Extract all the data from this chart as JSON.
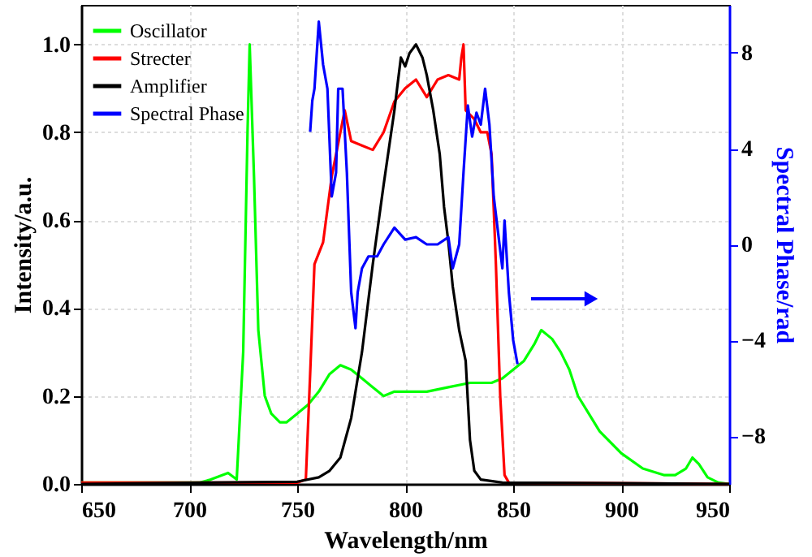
{
  "chart_data": {
    "type": "line",
    "xlabel": "Wavelength/nm",
    "ylabel": "Intensity/a.u.",
    "y2label": "Spectral Phase/rad",
    "xlim": [
      650,
      950
    ],
    "xticks": [
      650,
      700,
      750,
      800,
      850,
      900,
      950
    ],
    "ylim": [
      0,
      1.09
    ],
    "yticks": [
      {
        "value": 0,
        "label": "0.0"
      },
      0.2,
      0.4,
      0.6,
      0.8,
      {
        "value": 1.0,
        "label": "1.0"
      }
    ],
    "y2lim": [
      -10,
      10
    ],
    "y2ticks": [
      -8,
      -4,
      0,
      4,
      8
    ],
    "grid": true,
    "legend": "top left",
    "line_style": "solid",
    "marker": "none",
    "series": [
      {
        "name": "Oscillator",
        "color": "#00ff00",
        "x": [
          650,
          680,
          705,
          710,
          718,
          722,
          725,
          727,
          728,
          730,
          732,
          735,
          738,
          742,
          745,
          750,
          755,
          760,
          765,
          770,
          775,
          780,
          785,
          790,
          795,
          800,
          810,
          820,
          830,
          840,
          845,
          850,
          855,
          860,
          863,
          868,
          872,
          876,
          880,
          885,
          890,
          900,
          910,
          920,
          925,
          930,
          933,
          936,
          940,
          945,
          950
        ],
        "values": [
          0.003,
          0.003,
          0.003,
          0.01,
          0.025,
          0.01,
          0.3,
          0.8,
          1.0,
          0.7,
          0.35,
          0.2,
          0.16,
          0.14,
          0.14,
          0.16,
          0.18,
          0.21,
          0.25,
          0.27,
          0.26,
          0.24,
          0.22,
          0.2,
          0.21,
          0.21,
          0.21,
          0.22,
          0.23,
          0.23,
          0.24,
          0.26,
          0.28,
          0.32,
          0.35,
          0.33,
          0.3,
          0.26,
          0.2,
          0.16,
          0.12,
          0.07,
          0.035,
          0.02,
          0.02,
          0.035,
          0.06,
          0.045,
          0.015,
          0.003,
          0.0
        ]
      },
      {
        "name": "Strecter",
        "color": "#ff0000",
        "x": [
          650,
          750,
          754,
          756,
          758,
          762,
          766,
          770,
          772,
          775,
          780,
          785,
          790,
          795,
          800,
          805,
          810,
          815,
          820,
          825,
          826,
          827,
          828,
          832,
          835,
          838,
          840,
          842,
          844,
          846,
          848,
          950
        ],
        "values": [
          0.003,
          0.003,
          0.01,
          0.25,
          0.5,
          0.55,
          0.7,
          0.8,
          0.85,
          0.78,
          0.77,
          0.76,
          0.8,
          0.87,
          0.9,
          0.92,
          0.88,
          0.92,
          0.93,
          0.92,
          0.97,
          1.0,
          0.85,
          0.83,
          0.8,
          0.8,
          0.75,
          0.5,
          0.2,
          0.02,
          0.003,
          0.0
        ]
      },
      {
        "name": "Amplifier",
        "color": "#000000",
        "x": [
          650,
          750,
          760,
          765,
          770,
          775,
          780,
          785,
          790,
          795,
          798,
          800,
          802,
          805,
          808,
          810,
          813,
          816,
          818,
          820,
          822,
          825,
          828,
          830,
          832,
          835,
          845,
          950
        ],
        "values": [
          0.0,
          0.005,
          0.015,
          0.03,
          0.06,
          0.15,
          0.3,
          0.5,
          0.68,
          0.85,
          0.97,
          0.95,
          0.98,
          1.0,
          0.97,
          0.93,
          0.85,
          0.75,
          0.63,
          0.55,
          0.45,
          0.35,
          0.28,
          0.1,
          0.03,
          0.01,
          0.003,
          0.0
        ]
      },
      {
        "name": "Spectral Phase",
        "color": "#0000ff",
        "axis": "y2",
        "x": [
          756,
          757,
          758,
          760,
          762,
          764,
          766,
          768,
          769,
          771,
          773,
          775,
          777,
          778,
          780,
          783,
          787,
          790,
          795,
          800,
          805,
          810,
          815,
          820,
          822,
          825,
          827,
          829,
          831,
          833,
          835,
          837,
          839,
          841,
          843,
          845,
          846,
          848,
          850,
          852
        ],
        "values": [
          4.7,
          6,
          6.5,
          9.3,
          7.5,
          6.5,
          2,
          3,
          6.5,
          6.5,
          3,
          -2,
          -3.5,
          -2,
          -1,
          -0.5,
          -0.5,
          0,
          0.7,
          0.2,
          0.3,
          0,
          0,
          0.3,
          -1,
          0,
          3,
          5.8,
          4.5,
          5.5,
          5,
          6.5,
          5,
          2,
          0.5,
          -1,
          1,
          -2,
          -4,
          -5
        ]
      }
    ]
  }
}
